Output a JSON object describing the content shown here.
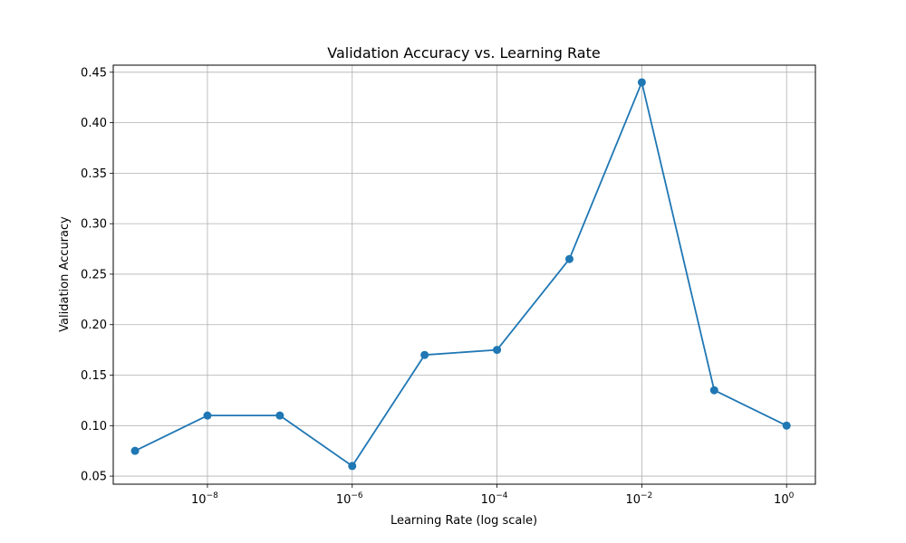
{
  "chart_data": {
    "type": "line",
    "title": "Validation Accuracy vs. Learning Rate",
    "xlabel": "Learning Rate (log scale)",
    "ylabel": "Validation Accuracy",
    "xscale": "log",
    "xlim": [
      5e-10,
      2.5
    ],
    "ylim": [
      0.042,
      0.457
    ],
    "grid": true,
    "x_ticks": [
      {
        "value": 1e-08,
        "base": "10",
        "exp": "−8"
      },
      {
        "value": 1e-06,
        "base": "10",
        "exp": "−6"
      },
      {
        "value": 0.0001,
        "base": "10",
        "exp": "−4"
      },
      {
        "value": 0.01,
        "base": "10",
        "exp": "−2"
      },
      {
        "value": 1,
        "base": "10",
        "exp": "0"
      }
    ],
    "y_ticks": [
      "0.05",
      "0.10",
      "0.15",
      "0.20",
      "0.25",
      "0.30",
      "0.35",
      "0.40",
      "0.45"
    ],
    "series_color": "#1f77b4",
    "series": [
      {
        "x": [
          1e-09,
          1e-08,
          1e-07,
          1e-06,
          1e-05,
          0.0001,
          0.001,
          0.01,
          0.1,
          1
        ],
        "y": [
          0.075,
          0.11,
          0.11,
          0.06,
          0.17,
          0.175,
          0.265,
          0.44,
          0.135,
          0.1
        ]
      }
    ]
  }
}
